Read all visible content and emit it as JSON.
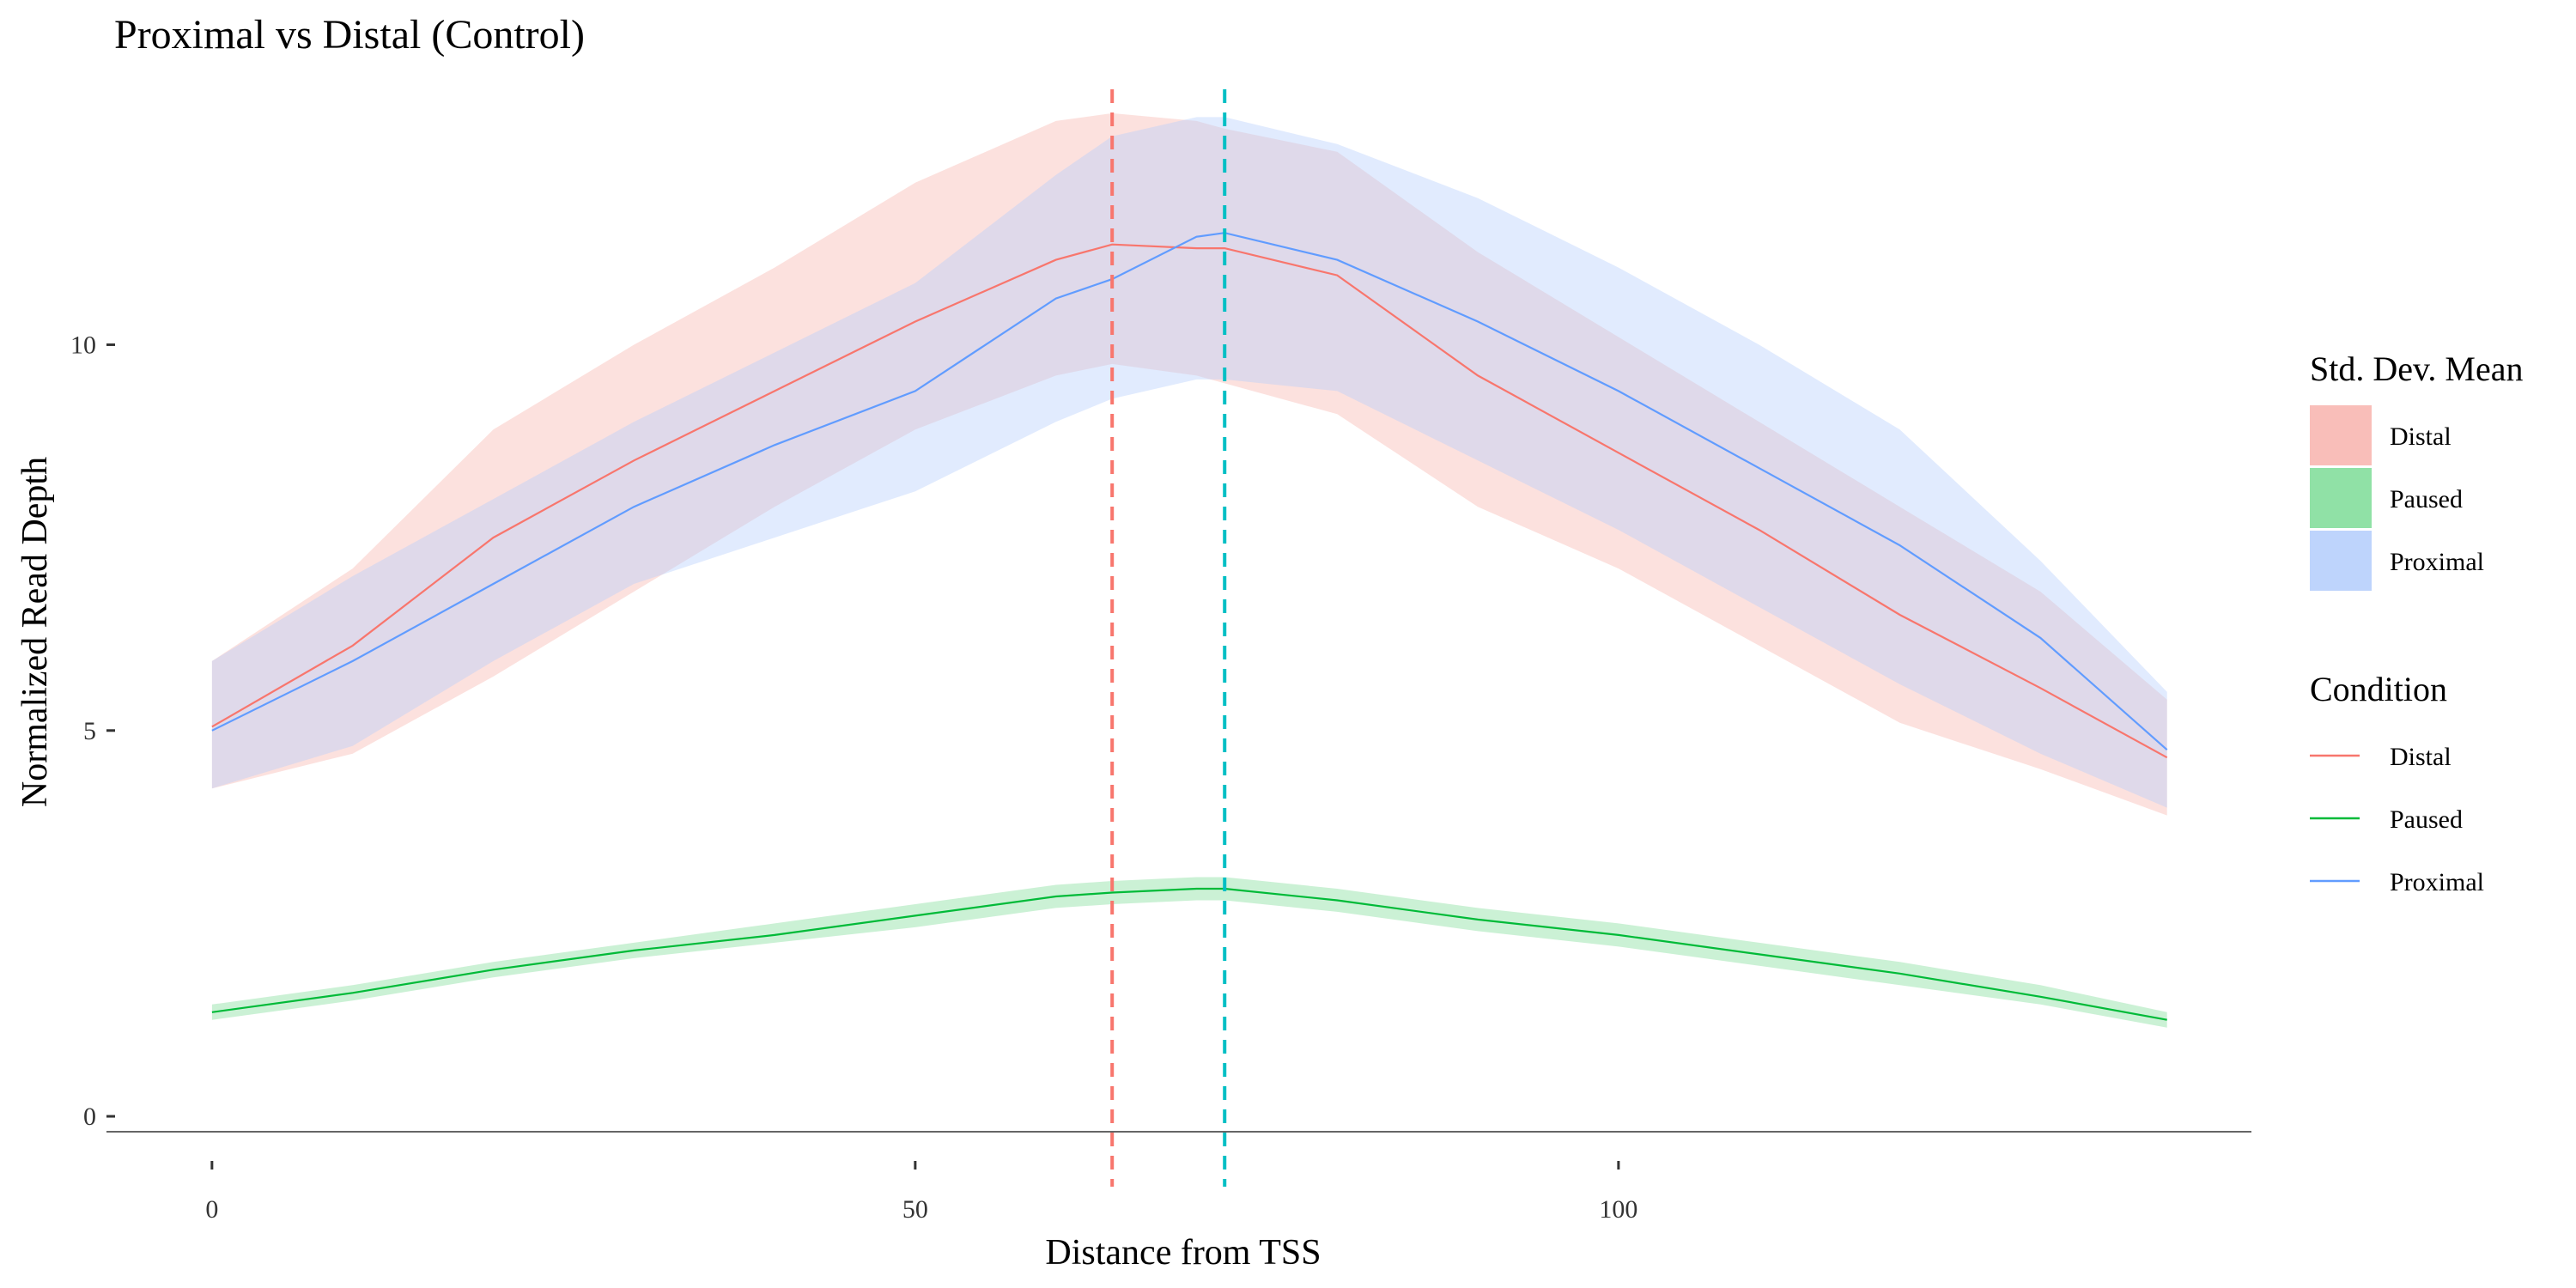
{
  "chart_data": {
    "type": "line",
    "title": "Proximal vs Distal (Control)",
    "xlabel": "Distance from TSS",
    "ylabel": "Normalized Read Depth",
    "xlim": [
      -7.5,
      145
    ],
    "ylim": [
      -0.5,
      13.8
    ],
    "x_ticks": [
      {
        "value": 0,
        "label": "0"
      },
      {
        "value": 50,
        "label": "50"
      },
      {
        "value": 100,
        "label": "100"
      }
    ],
    "y_ticks": [
      {
        "value": 0,
        "label": "0"
      },
      {
        "value": 5,
        "label": "5"
      },
      {
        "value": 10,
        "label": "10"
      }
    ],
    "grid": false,
    "legend_placement": "right",
    "x": [
      0,
      10,
      20,
      30,
      40,
      50,
      60,
      64,
      70,
      72,
      80,
      90,
      100,
      110,
      120,
      130,
      139
    ],
    "series": [
      {
        "name": "Distal",
        "color": "#f8766d",
        "fill_color": "#f8b3ad",
        "mean": [
          5.05,
          6.1,
          7.5,
          8.5,
          9.4,
          10.3,
          11.1,
          11.3,
          11.25,
          11.25,
          10.9,
          9.6,
          8.6,
          7.6,
          6.5,
          5.55,
          4.65
        ],
        "sd_lower": [
          4.25,
          4.7,
          5.7,
          6.8,
          7.9,
          8.9,
          9.6,
          9.75,
          9.6,
          9.5,
          9.1,
          7.9,
          7.1,
          6.1,
          5.1,
          4.5,
          3.9
        ],
        "sd_upper": [
          5.9,
          7.1,
          8.9,
          10.0,
          11.0,
          12.1,
          12.9,
          13.0,
          12.9,
          12.8,
          12.5,
          11.2,
          10.1,
          9.0,
          7.9,
          6.8,
          5.4
        ]
      },
      {
        "name": "Paused",
        "color": "#00ba38",
        "fill_color": "#7ddc96",
        "mean": [
          1.35,
          1.6,
          1.9,
          2.15,
          2.35,
          2.6,
          2.85,
          2.9,
          2.95,
          2.95,
          2.8,
          2.55,
          2.35,
          2.1,
          1.85,
          1.55,
          1.25
        ],
        "sd_lower": [
          1.25,
          1.5,
          1.8,
          2.05,
          2.25,
          2.45,
          2.7,
          2.75,
          2.8,
          2.8,
          2.65,
          2.4,
          2.2,
          1.95,
          1.7,
          1.45,
          1.15
        ],
        "sd_upper": [
          1.45,
          1.7,
          2.0,
          2.25,
          2.5,
          2.75,
          3.0,
          3.05,
          3.1,
          3.1,
          2.95,
          2.7,
          2.5,
          2.25,
          2.0,
          1.7,
          1.35
        ]
      },
      {
        "name": "Proximal",
        "color": "#619cff",
        "fill_color": "#b3cdfc",
        "mean": [
          5.0,
          5.9,
          6.9,
          7.9,
          8.7,
          9.4,
          10.6,
          10.85,
          11.4,
          11.45,
          11.1,
          10.3,
          9.4,
          8.4,
          7.4,
          6.2,
          4.75
        ],
        "sd_lower": [
          4.25,
          4.8,
          5.9,
          6.9,
          7.5,
          8.1,
          9.0,
          9.3,
          9.55,
          9.55,
          9.4,
          8.5,
          7.6,
          6.6,
          5.6,
          4.7,
          4.0
        ],
        "sd_upper": [
          5.9,
          7.0,
          8.0,
          9.0,
          9.9,
          10.8,
          12.2,
          12.7,
          12.95,
          12.95,
          12.6,
          11.9,
          11.0,
          10.0,
          8.9,
          7.2,
          5.5
        ]
      }
    ],
    "vlines": [
      {
        "x": 64,
        "color": "#f8766d",
        "style": "dashed"
      },
      {
        "x": 72,
        "color": "#00bfc4",
        "style": "dashed"
      }
    ],
    "legend": {
      "fill_title": "Std. Dev. Mean",
      "fill_items": [
        {
          "label": "Distal",
          "color": "#f8b3ad"
        },
        {
          "label": "Paused",
          "color": "#7ddc96"
        },
        {
          "label": "Proximal",
          "color": "#b3cdfc"
        }
      ],
      "line_title": "Condition",
      "line_items": [
        {
          "label": "Distal",
          "color": "#f8766d"
        },
        {
          "label": "Paused",
          "color": "#00ba38"
        },
        {
          "label": "Proximal",
          "color": "#619cff"
        }
      ]
    }
  }
}
